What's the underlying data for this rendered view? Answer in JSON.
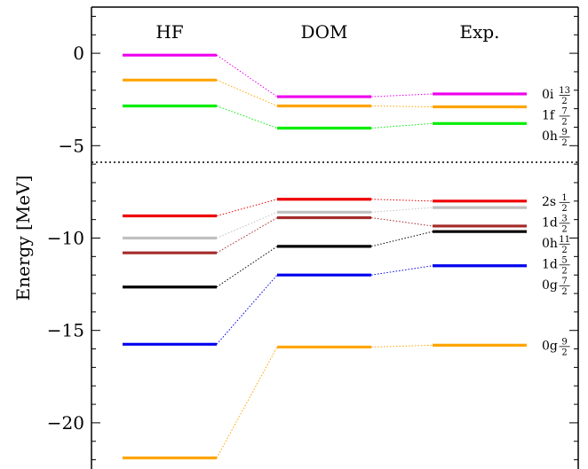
{
  "chart_data": {
    "type": "level-diagram",
    "ylabel": "Energy [MeV]",
    "ylim": [
      -22.5,
      2.5
    ],
    "yticks_major": [
      0,
      -5,
      -10,
      -15,
      -20
    ],
    "ytick_labels": [
      "0",
      "−5",
      "−10",
      "−15",
      "−20"
    ],
    "columns": [
      "HF",
      "DOM",
      "Exp."
    ],
    "separator_energy": -5.9,
    "levels": [
      {
        "label": "0i",
        "num": "13",
        "den": "2",
        "color": "#ee00ee",
        "values": [
          -0.1,
          -2.35,
          -2.2
        ]
      },
      {
        "label": "1f",
        "num": "7",
        "den": "2",
        "color": "#ffa500",
        "values": [
          -1.45,
          -2.85,
          -2.9
        ]
      },
      {
        "label": "0h",
        "num": "9",
        "den": "2",
        "color": "#00ee00",
        "values": [
          -2.85,
          -4.05,
          -3.8
        ]
      },
      {
        "label": "2s",
        "num": "1",
        "den": "2",
        "color": "#ee0000",
        "values": [
          -8.8,
          -7.9,
          -8.0
        ]
      },
      {
        "label": "1d",
        "num": "3",
        "den": "2",
        "color": "#c0c0c0",
        "values": [
          -10.0,
          -8.6,
          -8.35
        ]
      },
      {
        "label": "0h",
        "num": "11",
        "den": "2",
        "color": "#a52a2a",
        "values": [
          -10.8,
          -8.9,
          -9.35
        ]
      },
      {
        "label": "1d",
        "num": "5",
        "den": "2",
        "color": "#000000",
        "values": [
          -12.65,
          -10.45,
          -9.65
        ]
      },
      {
        "label": "0g",
        "num": "7",
        "den": "2",
        "color": "#0000ee",
        "values": [
          -15.75,
          -12.0,
          -11.5
        ]
      },
      {
        "label": "0g",
        "num": "9",
        "den": "2",
        "color": "#ffa500",
        "values": [
          -21.9,
          -15.9,
          -15.8
        ]
      }
    ]
  }
}
